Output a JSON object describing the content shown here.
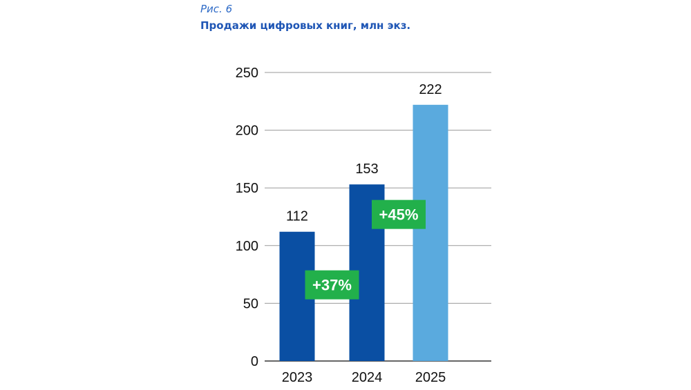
{
  "figure": {
    "label": "Рис. 6",
    "title": "Продажи цифровых книг, млн экз."
  },
  "chart_data": {
    "type": "bar",
    "title": "Продажи цифровых книг, млн экз.",
    "xlabel": "",
    "ylabel": "",
    "categories": [
      "2023",
      "2024",
      "2025"
    ],
    "values": [
      112,
      153,
      222
    ],
    "value_labels": [
      "112",
      "153",
      "222"
    ],
    "bar_colors": [
      "#0a4fa3",
      "#0a4fa3",
      "#5aaade"
    ],
    "ylim": [
      0,
      250
    ],
    "yticks": [
      0,
      50,
      100,
      150,
      200,
      250
    ],
    "grid": true,
    "annotations": [
      {
        "text": "+37%",
        "between": [
          "2023",
          "2024"
        ],
        "y": 66,
        "color": "#22b04b"
      },
      {
        "text": "+45%",
        "between": [
          "2024",
          "2025"
        ],
        "y": 127,
        "color": "#22b04b"
      }
    ]
  }
}
